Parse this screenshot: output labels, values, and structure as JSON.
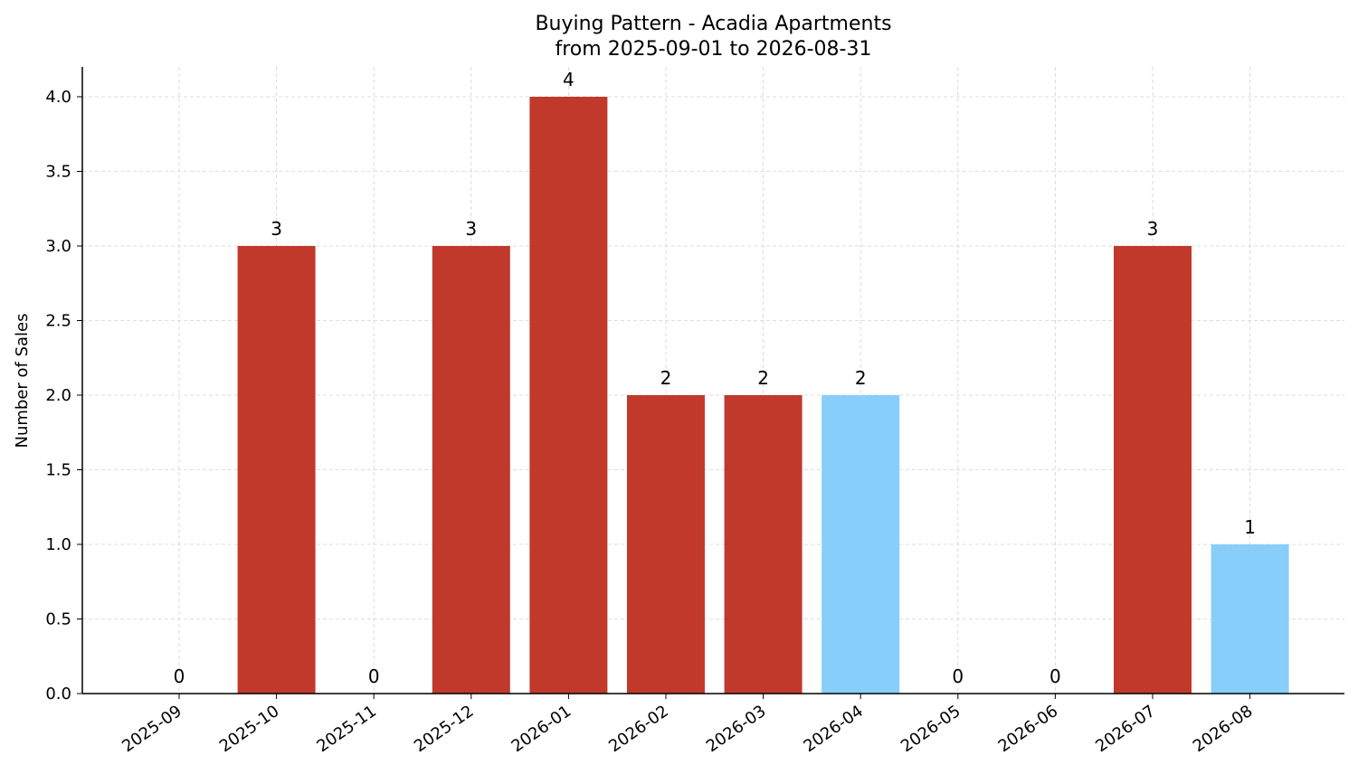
{
  "chart_data": {
    "type": "bar",
    "title": "Buying Pattern - Acadia Apartments",
    "subtitle": "from 2025-09-01 to 2026-08-31",
    "xlabel": "",
    "ylabel": "Number of Sales",
    "categories": [
      "2025-09",
      "2025-10",
      "2025-11",
      "2025-12",
      "2026-01",
      "2026-02",
      "2026-03",
      "2026-04",
      "2026-05",
      "2026-06",
      "2026-07",
      "2026-08"
    ],
    "values": [
      0,
      3,
      0,
      3,
      4,
      2,
      2,
      2,
      0,
      0,
      3,
      1
    ],
    "bar_colors": [
      "#c0392b",
      "#c0392b",
      "#c0392b",
      "#c0392b",
      "#c0392b",
      "#c0392b",
      "#c0392b",
      "#87cefa",
      "#c0392b",
      "#c0392b",
      "#c0392b",
      "#87cefa"
    ],
    "data_labels": [
      "0",
      "3",
      "0",
      "3",
      "4",
      "2",
      "2",
      "2",
      "0",
      "0",
      "3",
      "1"
    ],
    "ylim": [
      0,
      4.2
    ],
    "yticks": [
      0.0,
      0.5,
      1.0,
      1.5,
      2.0,
      2.5,
      3.0,
      3.5,
      4.0
    ],
    "ytick_labels": [
      "0.0",
      "0.5",
      "1.0",
      "1.5",
      "2.0",
      "2.5",
      "3.0",
      "3.5",
      "4.0"
    ],
    "grid": true,
    "legend": "none"
  }
}
